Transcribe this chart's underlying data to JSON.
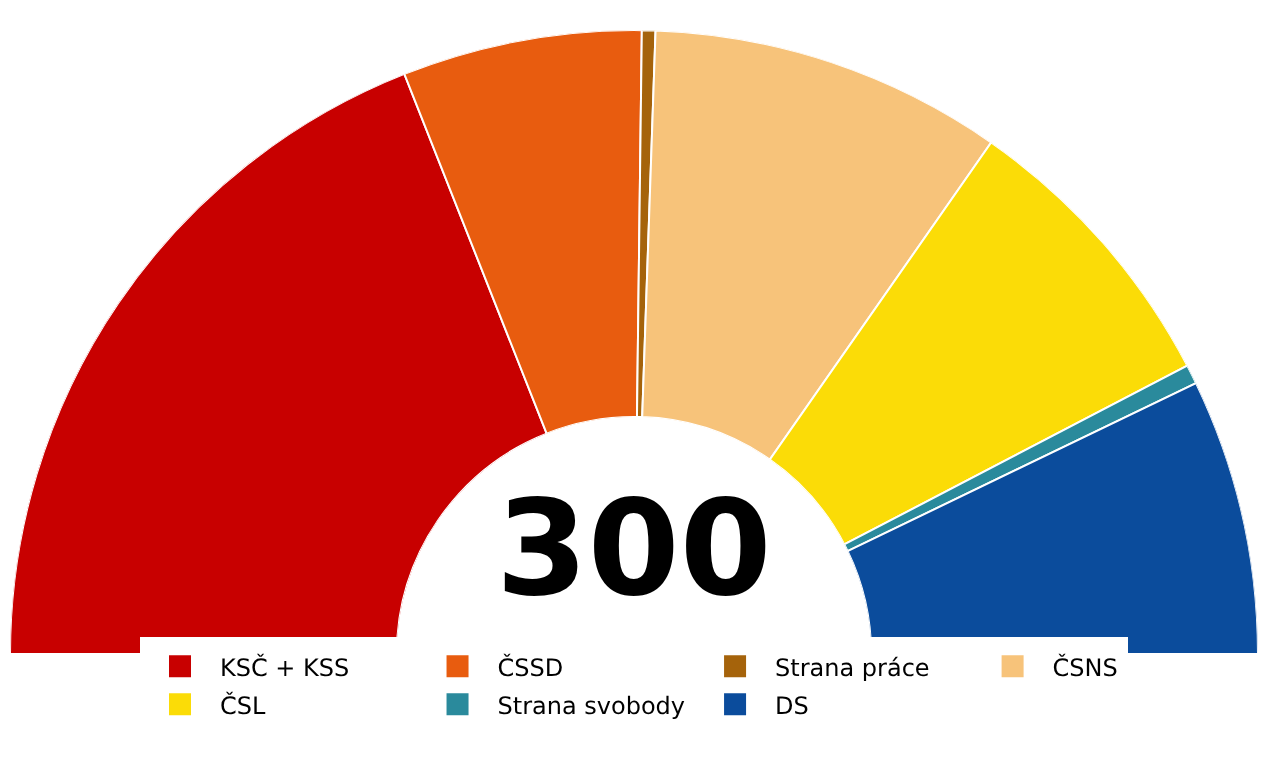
{
  "chart_data": {
    "type": "donut",
    "categories": [
      "KSČ + KSS",
      "ČSSD",
      "Strana práce",
      "ČSNS",
      "ČSL",
      "Strana svobody",
      "DS"
    ],
    "values": [
      38,
      12.4,
      0.7,
      18.3,
      15.3,
      1,
      14.3
    ],
    "colors": [
      "#c80000",
      "#e85c0f",
      "#a5630b",
      "#f7c37a",
      "#fbdc07",
      "#2a8a9c",
      "#0b4c9c"
    ],
    "annotations": [
      "300"
    ],
    "legend": "bottom"
  }
}
